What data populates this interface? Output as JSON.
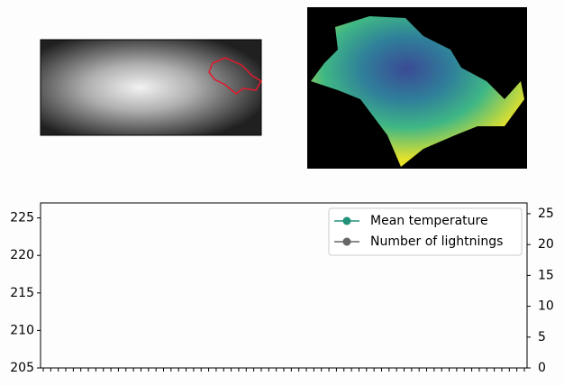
{
  "chart_data": {
    "type": "line",
    "x": [],
    "series": [
      {
        "name": "Mean temperature",
        "color": "#21917a",
        "values": []
      },
      {
        "name": "Number of lightnings",
        "color": "#666666",
        "values": [],
        "axis": "y2"
      }
    ],
    "xlim": [
      0,
      64
    ],
    "xticks": [
      0,
      1,
      2,
      3,
      4,
      5,
      6,
      7,
      8,
      9,
      10,
      11,
      12,
      13,
      14,
      15,
      16,
      17,
      18,
      19,
      20,
      21,
      22,
      23,
      24,
      25,
      26,
      27,
      28,
      29,
      30,
      31,
      32,
      33,
      34,
      35,
      36,
      37,
      38,
      39,
      40,
      41,
      42,
      43,
      44,
      45,
      46,
      47,
      48,
      49,
      50,
      51,
      52,
      53,
      54,
      55,
      56,
      57,
      58,
      59,
      60,
      61,
      62,
      63,
      64
    ],
    "ylim": [
      205,
      227
    ],
    "yticks": [
      205,
      210,
      215,
      220,
      225
    ],
    "y2lim": [
      0,
      26.75
    ],
    "y2ticks": [
      0,
      5,
      10,
      15,
      20,
      25
    ],
    "legend": "upper right"
  }
}
